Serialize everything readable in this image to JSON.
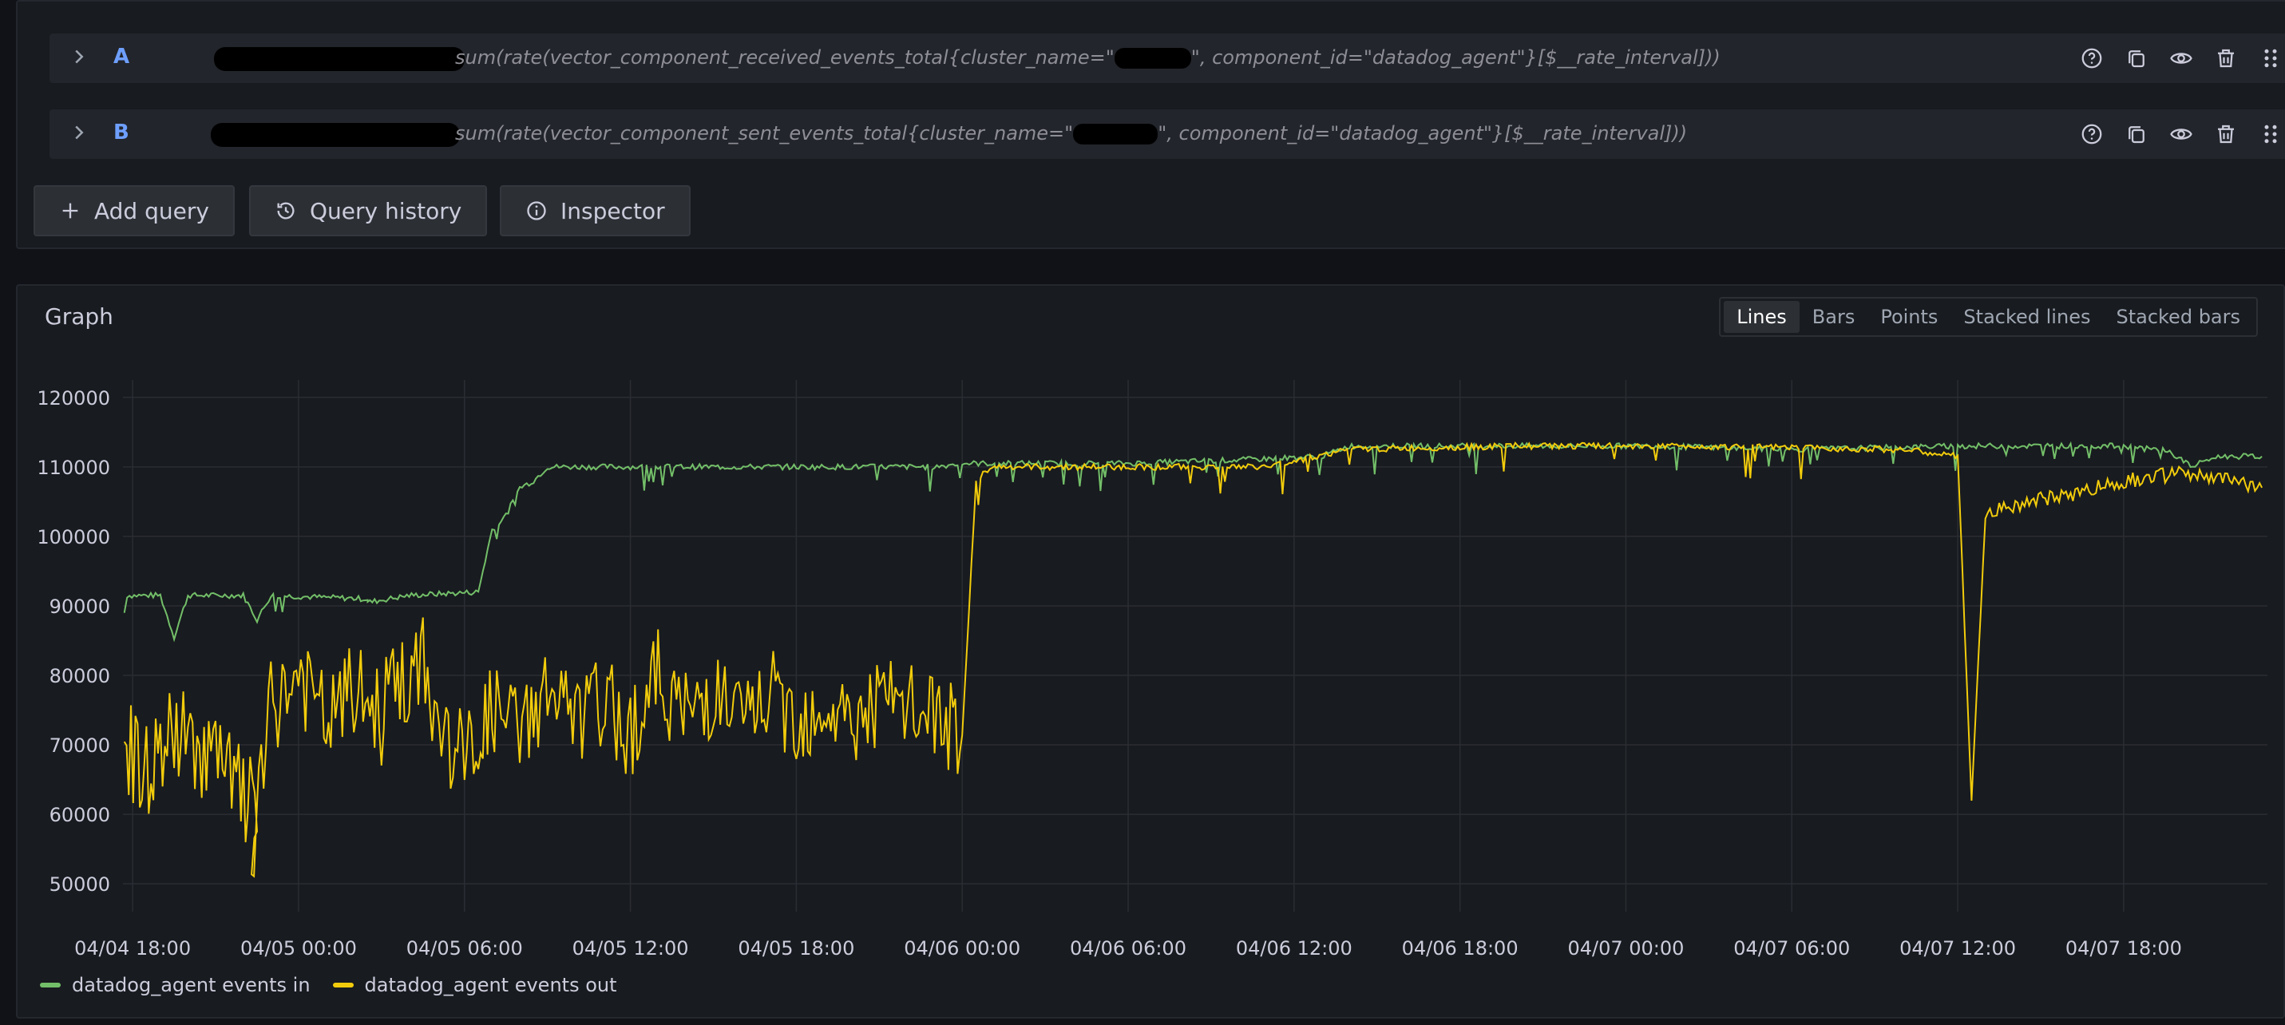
{
  "queries": [
    {
      "ref_id": "A",
      "expr_prefix": "sum(rate(vector_component_received_events_total{cluster_name=\"",
      "expr_suffix": "\", component_id=\"datadog_agent\"}[$__rate_interval]))"
    },
    {
      "ref_id": "B",
      "expr_prefix": "sum(rate(vector_component_sent_events_total{cluster_name=\"",
      "expr_suffix": "\", component_id=\"datadog_agent\"}[$__rate_interval]))"
    }
  ],
  "row_icons": [
    "help-icon",
    "copy-icon",
    "eye-icon",
    "trash-icon",
    "drag-handle-icon"
  ],
  "buttons": {
    "add_query": "Add query",
    "query_history": "Query history",
    "inspector": "Inspector"
  },
  "graph": {
    "title": "Graph",
    "viz_options": [
      "Lines",
      "Bars",
      "Points",
      "Stacked lines",
      "Stacked bars"
    ],
    "active_viz": "Lines"
  },
  "colors": {
    "series_in": "#73bf69",
    "series_out": "#f2cc0c",
    "ref_id": "#6e9fff"
  },
  "chart_data": {
    "type": "line",
    "y_ticks": [
      "120000",
      "110000",
      "100000",
      "90000",
      "80000",
      "70000",
      "60000",
      "50000"
    ],
    "ylim": [
      46000,
      122500
    ],
    "x_ticks": [
      "04/04 18:00",
      "04/05 00:00",
      "04/05 06:00",
      "04/05 12:00",
      "04/05 18:00",
      "04/06 00:00",
      "04/06 06:00",
      "04/06 12:00",
      "04/06 18:00",
      "04/07 00:00",
      "04/07 06:00",
      "04/07 12:00",
      "04/07 18:00"
    ],
    "x_unit": "hours since 04/04 18:00",
    "xlim": [
      -0.35,
      77.2
    ],
    "grid": true,
    "legend_position": "bottom-left",
    "series": [
      {
        "name": "datadog_agent events in",
        "color": "#73bf69",
        "points": [
          [
            -0.3,
            89000
          ],
          [
            -0.2,
            91500
          ],
          [
            1,
            91500
          ],
          [
            1.5,
            85500
          ],
          [
            2,
            91500
          ],
          [
            4,
            91500
          ],
          [
            4.5,
            88000
          ],
          [
            5,
            91500
          ],
          [
            8.5,
            91000
          ],
          [
            8.5,
            90500
          ],
          [
            10,
            91500
          ],
          [
            12.5,
            92000
          ],
          [
            13,
            101000
          ],
          [
            13.5,
            103000
          ],
          [
            14,
            107000
          ],
          [
            14.5,
            108000
          ],
          [
            15,
            110000
          ],
          [
            20,
            110000
          ],
          [
            25,
            110000
          ],
          [
            29,
            110000
          ],
          [
            30,
            110500
          ],
          [
            36,
            110500
          ],
          [
            40,
            111000
          ],
          [
            43,
            111500
          ],
          [
            44,
            113000
          ],
          [
            50,
            113000
          ],
          [
            55,
            113000
          ],
          [
            60,
            112500
          ],
          [
            66,
            113000
          ],
          [
            72,
            113000
          ],
          [
            73,
            112500
          ],
          [
            73.5,
            112500
          ],
          [
            74.5,
            110000
          ],
          [
            75,
            111000
          ],
          [
            75.5,
            111500
          ],
          [
            76,
            111500
          ],
          [
            77,
            111500
          ]
        ],
        "values_note": "continues to end (04/07 ~23:00)"
      },
      {
        "name": "datadog_agent events out",
        "color": "#f2cc0c",
        "points": [
          [
            -0.3,
            70000
          ],
          [
            0.5,
            66000
          ],
          [
            1.5,
            72000
          ],
          [
            3,
            68000
          ],
          [
            4.5,
            60000
          ],
          [
            4.3,
            52500
          ],
          [
            5,
            75000
          ],
          [
            6,
            80000
          ],
          [
            7,
            73000
          ],
          [
            8,
            78000
          ],
          [
            9,
            74000
          ],
          [
            9.5,
            82000
          ],
          [
            10,
            75000
          ],
          [
            10.5,
            84000
          ],
          [
            11,
            72000
          ],
          [
            12,
            68000
          ],
          [
            13,
            75000
          ],
          [
            14,
            72000
          ],
          [
            15,
            78000
          ],
          [
            16,
            73000
          ],
          [
            17,
            76000
          ],
          [
            18,
            72000
          ],
          [
            19,
            80000
          ],
          [
            20,
            74000
          ],
          [
            21,
            78000
          ],
          [
            22,
            73000
          ],
          [
            23,
            77000
          ],
          [
            24,
            74000
          ],
          [
            25,
            76000
          ],
          [
            26,
            73000
          ],
          [
            27,
            76000
          ],
          [
            28,
            75000
          ],
          [
            29,
            74000
          ],
          [
            30,
            71000
          ],
          [
            30.5,
            108000
          ],
          [
            31,
            110000
          ],
          [
            38,
            110000
          ],
          [
            41,
            110000
          ],
          [
            44,
            112500
          ],
          [
            50,
            113000
          ],
          [
            56,
            113000
          ],
          [
            64,
            112500
          ],
          [
            66,
            111500
          ],
          [
            66.5,
            62000
          ],
          [
            67,
            103000
          ],
          [
            68,
            104500
          ],
          [
            70,
            106000
          ],
          [
            72,
            108000
          ],
          [
            74,
            109000
          ],
          [
            76,
            108000
          ],
          [
            77,
            107000
          ]
        ],
        "values_note": "continues to end (04/07 ~23:00)"
      }
    ]
  }
}
